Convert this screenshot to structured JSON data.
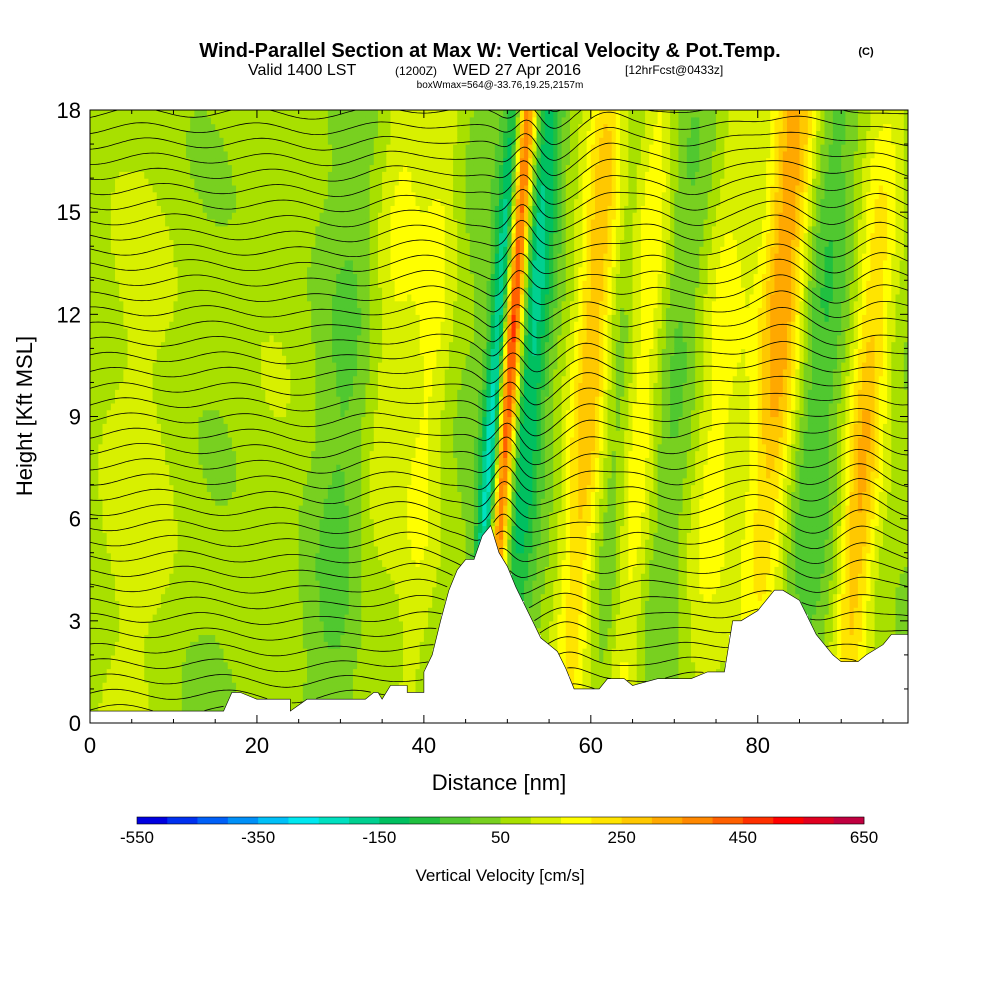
{
  "chart_data": {
    "type": "heatmap",
    "title": {
      "main": "Wind-Parallel Section at Max W: Vertical Velocity & Pot.Temp.",
      "copyright": "(C)",
      "valid_prefix": "Valid 1400 LST",
      "valid_utc": "(1200Z)",
      "valid_date": "WED 27 Apr 2016",
      "forecast_info": "[12hrFcst@0433z]",
      "box_info": "boxWmax=564@-33.76,19.25,2157m"
    },
    "xlabel": "Distance [nm]",
    "ylabel": "Height [Kft MSL]",
    "xlim": [
      0,
      98
    ],
    "ylim": [
      0,
      18
    ],
    "x_ticks": [
      0,
      20,
      40,
      60,
      80
    ],
    "y_ticks": [
      0,
      3,
      6,
      9,
      12,
      15,
      18
    ],
    "x_tick_labels": [
      "0",
      "20",
      "40",
      "60",
      "80"
    ],
    "y_tick_labels": [
      "0",
      "3",
      "6",
      "9",
      "12",
      "15",
      "18"
    ],
    "colorbar": {
      "label": "Vertical Velocity [cm/s]",
      "min": -550,
      "max": 650,
      "step": 50,
      "tick_labels": [
        "-550",
        "-350",
        "-150",
        "50",
        "250",
        "450",
        "650"
      ],
      "tick_values": [
        -550,
        -350,
        -150,
        50,
        250,
        450,
        650
      ],
      "colors": [
        "#0000e0",
        "#0030f0",
        "#0060f8",
        "#0090f8",
        "#00c0f8",
        "#00e8f0",
        "#00e0c0",
        "#00d090",
        "#00c060",
        "#20c040",
        "#50c830",
        "#78d020",
        "#a8e000",
        "#d8f000",
        "#ffff00",
        "#ffe400",
        "#ffc800",
        "#ffa800",
        "#ff8800",
        "#ff6000",
        "#ff3000",
        "#ff0000",
        "#e00020",
        "#c00040"
      ]
    },
    "terrain_kft": [
      [
        0,
        0.35
      ],
      [
        16,
        0.35
      ],
      [
        17,
        0.9
      ],
      [
        18,
        0.9
      ],
      [
        20,
        0.7
      ],
      [
        24,
        0.7
      ],
      [
        24,
        0.35
      ],
      [
        26,
        0.7
      ],
      [
        33,
        0.7
      ],
      [
        34,
        0.9
      ],
      [
        34.5,
        0.9
      ],
      [
        35,
        0.7
      ],
      [
        36,
        1.1
      ],
      [
        38,
        1.1
      ],
      [
        38,
        0.9
      ],
      [
        40,
        0.9
      ],
      [
        40,
        1.5
      ],
      [
        41,
        2.0
      ],
      [
        42,
        3.0
      ],
      [
        43,
        3.9
      ],
      [
        44,
        4.5
      ],
      [
        45,
        4.8
      ],
      [
        46,
        4.8
      ],
      [
        47,
        5.5
      ],
      [
        48,
        5.8
      ],
      [
        49,
        5.0
      ],
      [
        50,
        4.6
      ],
      [
        51,
        4.0
      ],
      [
        52,
        3.5
      ],
      [
        53,
        3.0
      ],
      [
        54,
        2.5
      ],
      [
        55,
        2.3
      ],
      [
        56,
        2.1
      ],
      [
        57,
        1.6
      ],
      [
        58,
        1.0
      ],
      [
        60,
        1.0
      ],
      [
        61,
        1.0
      ],
      [
        62,
        1.3
      ],
      [
        64,
        1.3
      ],
      [
        65,
        1.1
      ],
      [
        68,
        1.3
      ],
      [
        70,
        1.3
      ],
      [
        72,
        1.3
      ],
      [
        74,
        1.5
      ],
      [
        76,
        1.5
      ],
      [
        77,
        3.0
      ],
      [
        78,
        3.0
      ],
      [
        80,
        3.3
      ],
      [
        82,
        3.9
      ],
      [
        83,
        3.9
      ],
      [
        85,
        3.6
      ],
      [
        87,
        2.6
      ],
      [
        89,
        2.0
      ],
      [
        90,
        1.8
      ],
      [
        92,
        1.8
      ],
      [
        93,
        2.0
      ],
      [
        95,
        2.3
      ],
      [
        96,
        2.6
      ],
      [
        98,
        2.6
      ]
    ],
    "w_centers": [
      {
        "x": 50.4,
        "kft": 11,
        "w": 600,
        "dx": 0.9,
        "dz": 9
      },
      {
        "x": 48.6,
        "kft": 9,
        "w": -380,
        "dx": 0.9,
        "dz": 8
      },
      {
        "x": 53.5,
        "kft": 13,
        "w": -220,
        "dx": 1.5,
        "dz": 8
      },
      {
        "x": 60.5,
        "kft": 12,
        "w": 230,
        "dx": 1.6,
        "dz": 10
      },
      {
        "x": 66,
        "kft": 10,
        "w": 210,
        "dx": 1.7,
        "dz": 11
      },
      {
        "x": 83.5,
        "kft": 14,
        "w": 330,
        "dx": 2.0,
        "dz": 8
      },
      {
        "x": 92,
        "kft": 6,
        "w": 220,
        "dx": 1.5,
        "dz": 6
      },
      {
        "x": 75,
        "kft": 10,
        "w": 140,
        "dx": 2.2,
        "dz": 8
      },
      {
        "x": 36,
        "kft": 12,
        "w": 110,
        "dx": 2.3,
        "dz": 10
      },
      {
        "x": 41,
        "kft": 11,
        "w": 90,
        "dx": 1.6,
        "dz": 9
      },
      {
        "x": 63,
        "kft": 6,
        "w": -110,
        "dx": 1.6,
        "dz": 6
      },
      {
        "x": 73,
        "kft": 14,
        "w": -70,
        "dx": 3.0,
        "dz": 8
      },
      {
        "x": 88,
        "kft": 13,
        "w": -90,
        "dx": 2.2,
        "dz": 8
      },
      {
        "x": 95,
        "kft": 15,
        "w": 60,
        "dx": 2.0,
        "dz": 6
      },
      {
        "x": 8,
        "kft": 8,
        "w": 60,
        "dx": 6.0,
        "dz": 10
      },
      {
        "x": 25,
        "kft": 10,
        "w": 20,
        "dx": 5.0,
        "dz": 10
      },
      {
        "x": 30,
        "kft": 6,
        "w": -60,
        "dx": 3.0,
        "dz": 8
      }
    ],
    "theta_contour_interval": 1,
    "theta_contour_count": 44
  }
}
